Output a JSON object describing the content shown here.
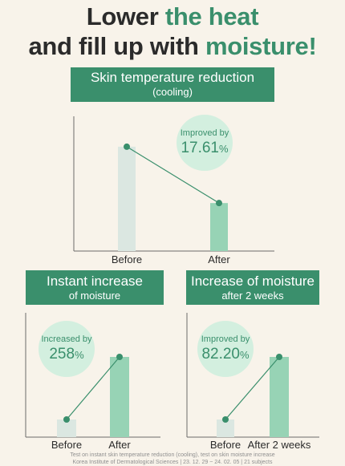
{
  "headline": {
    "line1_plain": "Lower ",
    "line1_accent": "the heat",
    "line2_plain": "and fill up with ",
    "line2_accent": "moisture!"
  },
  "colors": {
    "accent": "#3a8f6c",
    "before_bar": "#dbe7e1",
    "after_bar": "#97d3b5",
    "bubble": "#d3efdf",
    "background": "#f8f3ea"
  },
  "chart_data": [
    {
      "type": "bar",
      "title": "Skin temperature reduction",
      "subtitle": "(cooling)",
      "categories": [
        "Before",
        "After"
      ],
      "values": [
        100,
        46
      ],
      "ylim": [
        0,
        103
      ],
      "annotation": {
        "label": "Improved by",
        "value": "17.61",
        "unit": "%"
      }
    },
    {
      "type": "bar",
      "title": "Instant increase",
      "subtitle": "of moisture",
      "categories": [
        "Before",
        "After"
      ],
      "values": [
        22,
        100
      ],
      "ylim": [
        0,
        100
      ],
      "annotation": {
        "label": "Increased by",
        "value": "258",
        "unit": "%"
      }
    },
    {
      "type": "bar",
      "title": "Increase of moisture",
      "subtitle": "after 2 weeks",
      "categories": [
        "Before",
        "After 2 weeks"
      ],
      "values": [
        22,
        100
      ],
      "ylim": [
        0,
        100
      ],
      "annotation": {
        "label": "Improved by",
        "value": "82.20",
        "unit": "%"
      }
    }
  ],
  "footnote": {
    "line1": "Test on instant skin temperature reduction (cooling), test on skin moisture increase",
    "line2": "Korea Institute of Dermatological Sciences | 23. 12. 29 ~ 24. 02. 05 | 21 subjects"
  }
}
